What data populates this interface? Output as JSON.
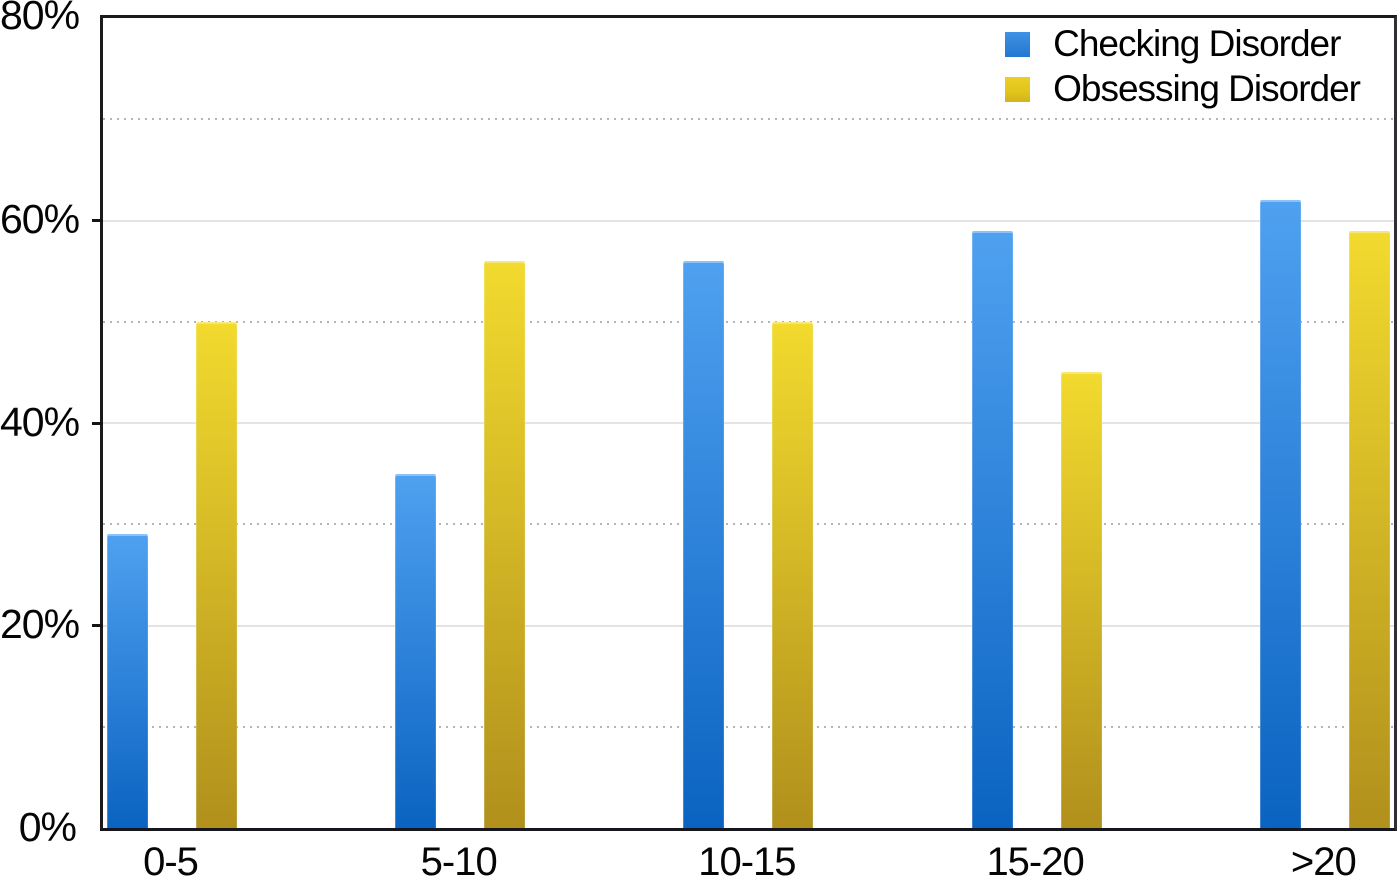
{
  "chart_data": {
    "type": "bar",
    "title": "",
    "xlabel": "",
    "ylabel": "",
    "categories": [
      "0-5",
      "5-10",
      "10-15",
      "15-20",
      ">20"
    ],
    "series": [
      {
        "name": "Checking Disorder",
        "values": [
          29,
          35,
          56,
          59,
          62
        ],
        "color_top": "#4fa1f0",
        "color_bottom": "#0b63c1",
        "legend_color": "#2e82d8"
      },
      {
        "name": "Obsessing Disorder",
        "values": [
          50,
          56,
          50,
          45,
          59
        ],
        "color_top": "#f2da2e",
        "color_bottom": "#b1901c",
        "legend_color": "#e2c41c"
      }
    ],
    "ylim": [
      0,
      80
    ],
    "y_major_ticks": [
      0,
      20,
      40,
      60,
      80
    ],
    "y_major_tick_labels": [
      "0%",
      "20%",
      "40%",
      "60%",
      "80%"
    ],
    "y_minor_ticks": [
      10,
      30,
      50,
      70
    ],
    "grid": {
      "major": "solid",
      "minor": "dotted"
    },
    "legend_position": "top-right",
    "frame_color": "#1b1b1b",
    "major_grid_color": "#e4e4e4",
    "minor_grid_color": "#b5b5b5"
  }
}
